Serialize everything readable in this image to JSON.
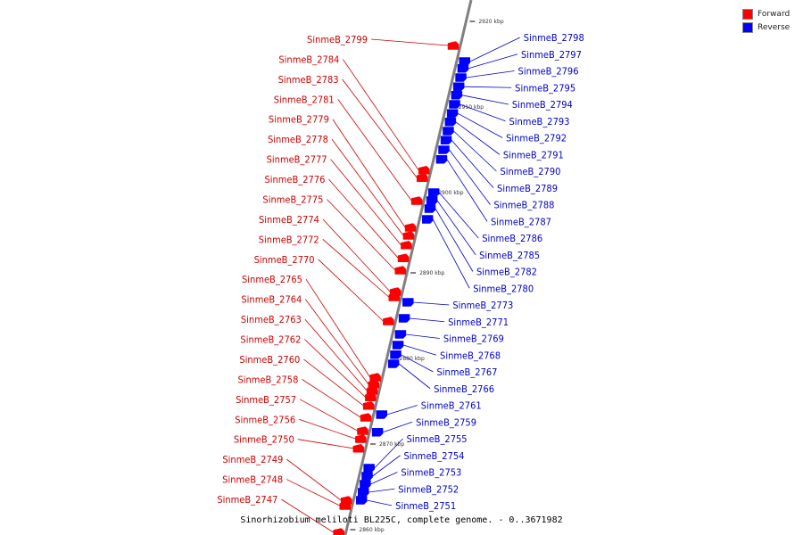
{
  "legend": {
    "items": [
      {
        "label": "Forward",
        "color": "#ff0000"
      },
      {
        "label": "Reverse",
        "color": "#0000ff"
      }
    ]
  },
  "caption": "Sinorhizobium meliloti BL225C, complete genome. - 0..3671982",
  "colors": {
    "forward": "#ff0000",
    "reverse": "#0000ff",
    "axis": "#808080"
  },
  "ticks": [
    {
      "label": "2920 kbp",
      "t": 0.04
    },
    {
      "label": "2910 kbp",
      "t": 0.2
    },
    {
      "label": "2900 kbp",
      "t": 0.36
    },
    {
      "label": "2890 kbp",
      "t": 0.51
    },
    {
      "label": "2880 kbp",
      "t": 0.67
    },
    {
      "label": "2870 kbp",
      "t": 0.83
    },
    {
      "label": "2860 kbp",
      "t": 0.99
    }
  ],
  "forward_genes": [
    {
      "label": "SinmeB_2799",
      "t": 0.085
    },
    {
      "label": "SinmeB_2784",
      "t": 0.318
    },
    {
      "label": "SinmeB_2783",
      "t": 0.332
    },
    {
      "label": "SinmeB_2781",
      "t": 0.375
    },
    {
      "label": "SinmeB_2779",
      "t": 0.425
    },
    {
      "label": "SinmeB_2778",
      "t": 0.44
    },
    {
      "label": "SinmeB_2777",
      "t": 0.458
    },
    {
      "label": "SinmeB_2776",
      "t": 0.482
    },
    {
      "label": "SinmeB_2775",
      "t": 0.505
    },
    {
      "label": "SinmeB_2774",
      "t": 0.545
    },
    {
      "label": "SinmeB_2772",
      "t": 0.555
    },
    {
      "label": "SinmeB_2770",
      "t": 0.6
    },
    {
      "label": "SinmeB_2765",
      "t": 0.705
    },
    {
      "label": "SinmeB_2764",
      "t": 0.718
    },
    {
      "label": "SinmeB_2763",
      "t": 0.73
    },
    {
      "label": "SinmeB_2762",
      "t": 0.742
    },
    {
      "label": "SinmeB_2760",
      "t": 0.758
    },
    {
      "label": "SinmeB_2758",
      "t": 0.78
    },
    {
      "label": "SinmeB_2757",
      "t": 0.805
    },
    {
      "label": "SinmeB_2756",
      "t": 0.82
    },
    {
      "label": "SinmeB_2750",
      "t": 0.838
    },
    {
      "label": "SinmeB_2749",
      "t": 0.935
    },
    {
      "label": "SinmeB_2748",
      "t": 0.945
    },
    {
      "label": "SinmeB_2747",
      "t": 0.995
    }
  ],
  "reverse_genes": [
    {
      "label": "SinmeB_2798",
      "t": 0.115
    },
    {
      "label": "SinmeB_2797",
      "t": 0.128
    },
    {
      "label": "SinmeB_2796",
      "t": 0.145
    },
    {
      "label": "SinmeB_2795",
      "t": 0.162
    },
    {
      "label": "SinmeB_2794",
      "t": 0.178
    },
    {
      "label": "SinmeB_2793",
      "t": 0.195
    },
    {
      "label": "SinmeB_2792",
      "t": 0.212
    },
    {
      "label": "SinmeB_2791",
      "t": 0.228
    },
    {
      "label": "SinmeB_2790",
      "t": 0.245
    },
    {
      "label": "SinmeB_2789",
      "t": 0.262
    },
    {
      "label": "SinmeB_2788",
      "t": 0.28
    },
    {
      "label": "SinmeB_2787",
      "t": 0.298
    },
    {
      "label": "SinmeB_2786",
      "t": 0.36
    },
    {
      "label": "SinmeB_2785",
      "t": 0.375
    },
    {
      "label": "SinmeB_2782",
      "t": 0.39
    },
    {
      "label": "SinmeB_2780",
      "t": 0.41
    },
    {
      "label": "SinmeB_2773",
      "t": 0.565
    },
    {
      "label": "SinmeB_2771",
      "t": 0.595
    },
    {
      "label": "SinmeB_2769",
      "t": 0.625
    },
    {
      "label": "SinmeB_2768",
      "t": 0.645
    },
    {
      "label": "SinmeB_2767",
      "t": 0.663
    },
    {
      "label": "SinmeB_2766",
      "t": 0.68
    },
    {
      "label": "SinmeB_2761",
      "t": 0.775
    },
    {
      "label": "SinmeB_2759",
      "t": 0.808
    },
    {
      "label": "SinmeB_2755",
      "t": 0.875
    },
    {
      "label": "SinmeB_2754",
      "t": 0.89
    },
    {
      "label": "SinmeB_2753",
      "t": 0.905
    },
    {
      "label": "SinmeB_2752",
      "t": 0.92
    },
    {
      "label": "SinmeB_2751",
      "t": 0.935
    }
  ]
}
